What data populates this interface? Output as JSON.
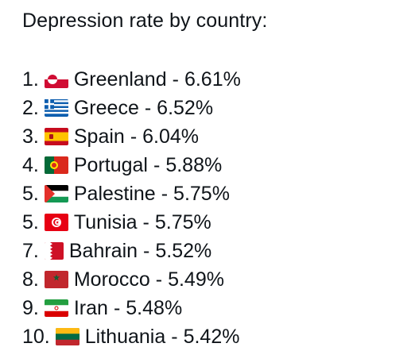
{
  "post": {
    "heading": "Depression rate by country:",
    "items": [
      {
        "number": "1.",
        "country": "Greenland",
        "rate": "6.61%",
        "flag_icon": "greenland-flag-icon"
      },
      {
        "number": "2.",
        "country": "Greece",
        "rate": "6.52%",
        "flag_icon": "greece-flag-icon"
      },
      {
        "number": "3.",
        "country": "Spain",
        "rate": "6.04%",
        "flag_icon": "spain-flag-icon"
      },
      {
        "number": "4.",
        "country": "Portugal",
        "rate": "5.88%",
        "flag_icon": "portugal-flag-icon"
      },
      {
        "number": "5.",
        "country": "Palestine",
        "rate": "5.75%",
        "flag_icon": "palestine-flag-icon"
      },
      {
        "number": "5.",
        "country": "Tunisia",
        "rate": "5.75%",
        "flag_icon": "tunisia-flag-icon"
      },
      {
        "number": "7.",
        "country": "Bahrain",
        "rate": "5.52%",
        "flag_icon": "bahrain-flag-icon"
      },
      {
        "number": "8.",
        "country": "Morocco",
        "rate": "5.49%",
        "flag_icon": "morocco-flag-icon"
      },
      {
        "number": "9.",
        "country": "Iran",
        "rate": "5.48%",
        "flag_icon": "iran-flag-icon"
      },
      {
        "number": "10.",
        "country": "Lithuania",
        "rate": "5.42%",
        "flag_icon": "lithuania-flag-icon"
      }
    ],
    "separator": "-"
  },
  "colors": {
    "text": "#0f1419",
    "background": "#ffffff"
  }
}
